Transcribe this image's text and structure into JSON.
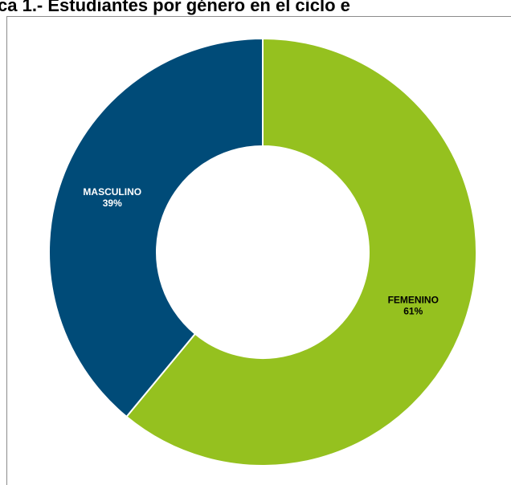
{
  "chart_data": {
    "type": "donut",
    "title": "ca 1.- Estudiantes por género en el ciclo e",
    "categories": [
      "FEMENINO",
      "MASCULINO"
    ],
    "values": [
      61,
      39
    ],
    "value_labels": [
      "61%",
      "39%"
    ],
    "colors": [
      "#95c11f",
      "#004b78"
    ],
    "label_colors": [
      "#000000",
      "#ffffff"
    ]
  }
}
